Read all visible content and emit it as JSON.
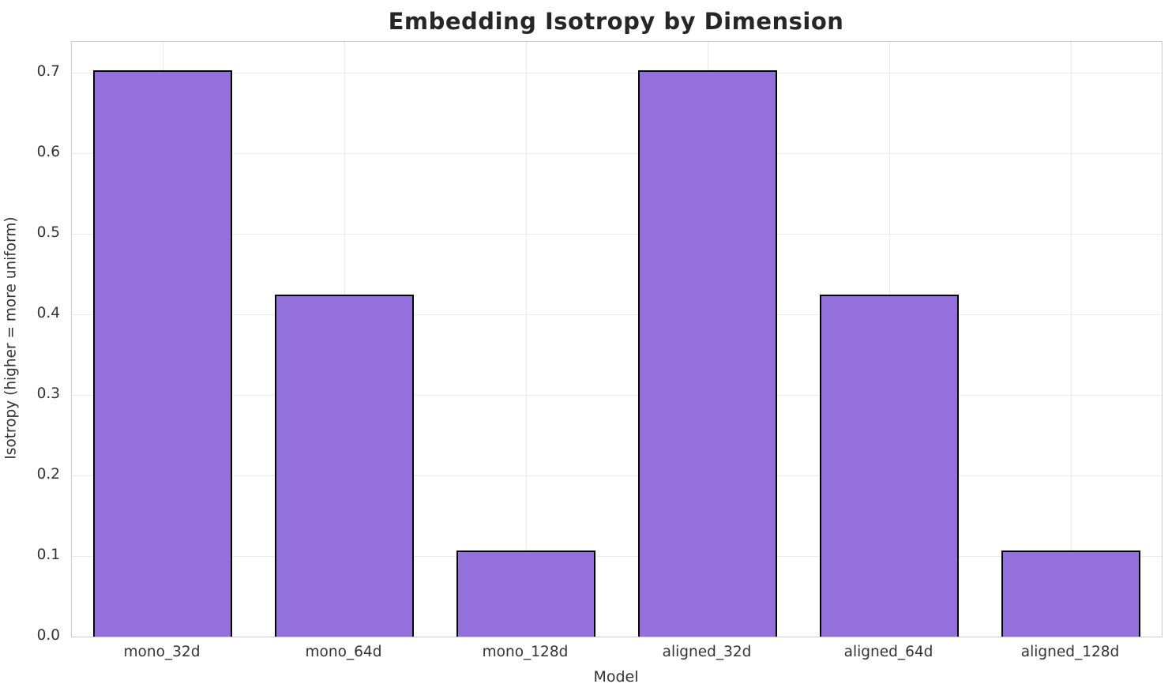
{
  "chart_data": {
    "type": "bar",
    "title": "Embedding Isotropy by Dimension",
    "xlabel": "Model",
    "ylabel": "Isotropy (higher = more uniform)",
    "categories": [
      "mono_32d",
      "mono_64d",
      "mono_128d",
      "aligned_32d",
      "aligned_64d",
      "aligned_128d"
    ],
    "values": [
      0.703,
      0.424,
      0.107,
      0.703,
      0.424,
      0.107
    ],
    "ylim": [
      0,
      0.738
    ],
    "yticks": [
      0.0,
      0.1,
      0.2,
      0.3,
      0.4,
      0.5,
      0.6,
      0.7
    ],
    "ytick_format_decimals": 1,
    "grid": "both",
    "legend": "none",
    "bar_color": "#9370DB",
    "bar_edge_color": "#000000",
    "gridline_color": "#ebebeb",
    "spine_color": "#cccccc",
    "text_color": "#333333",
    "title_color": "#262626",
    "background": "#ffffff"
  }
}
